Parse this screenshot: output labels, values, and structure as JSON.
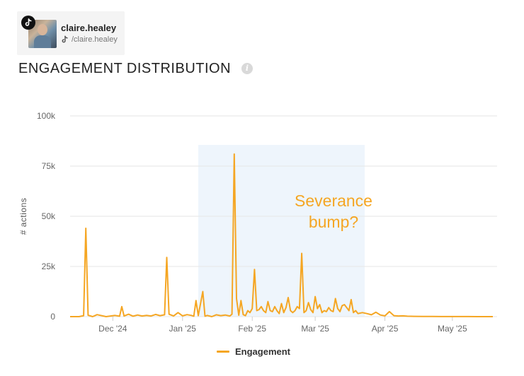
{
  "profile": {
    "username": "claire.healey",
    "handle": "/claire.healey",
    "platform_icon": "tiktok-icon",
    "avatar": "profile-photo"
  },
  "header": {
    "title": "ENGAGEMENT DISTRIBUTION",
    "info_icon": "info-icon"
  },
  "chart_data": {
    "type": "line",
    "title": "ENGAGEMENT DISTRIBUTION",
    "xlabel": "",
    "ylabel": "# actions",
    "ylim": [
      0,
      100000
    ],
    "yticks": [
      {
        "value": 0,
        "label": "0"
      },
      {
        "value": 25000,
        "label": "25k"
      },
      {
        "value": 50000,
        "label": "50k"
      },
      {
        "value": 75000,
        "label": "75k"
      },
      {
        "value": 100000,
        "label": "100k"
      }
    ],
    "xlim": [
      "2024-11-12",
      "2025-05-19"
    ],
    "xticks": [
      {
        "date": "2024-12-01",
        "label": "Dec '24"
      },
      {
        "date": "2025-01-01",
        "label": "Jan '25"
      },
      {
        "date": "2025-02-01",
        "label": "Feb '25"
      },
      {
        "date": "2025-03-01",
        "label": "Mar '25"
      },
      {
        "date": "2025-04-01",
        "label": "Apr '25"
      },
      {
        "date": "2025-05-01",
        "label": "May '25"
      }
    ],
    "grid": true,
    "legend": "bottom-center",
    "color": "#f5a623",
    "highlight": {
      "x_start": "2025-01-08",
      "x_end": "2025-03-23",
      "color": "#eef5fc"
    },
    "annotation": {
      "text": [
        "Severance",
        "bump?"
      ],
      "color": "#f5a623"
    },
    "series": [
      {
        "name": "Engagement",
        "x": [
          "2024-11-12",
          "2024-11-16",
          "2024-11-18",
          "2024-11-19",
          "2024-11-20",
          "2024-11-22",
          "2024-11-24",
          "2024-11-28",
          "2024-12-02",
          "2024-12-04",
          "2024-12-05",
          "2024-12-06",
          "2024-12-08",
          "2024-12-10",
          "2024-12-12",
          "2024-12-14",
          "2024-12-16",
          "2024-12-18",
          "2024-12-20",
          "2024-12-22",
          "2024-12-24",
          "2024-12-25",
          "2024-12-26",
          "2024-12-28",
          "2024-12-30",
          "2025-01-01",
          "2025-01-03",
          "2025-01-05",
          "2025-01-06",
          "2025-01-07",
          "2025-01-08",
          "2025-01-10",
          "2025-01-11",
          "2025-01-12",
          "2025-01-14",
          "2025-01-16",
          "2025-01-18",
          "2025-01-20",
          "2025-01-22",
          "2025-01-23",
          "2025-01-24",
          "2025-01-25",
          "2025-01-26",
          "2025-01-27",
          "2025-01-28",
          "2025-01-29",
          "2025-01-30",
          "2025-01-31",
          "2025-02-01",
          "2025-02-02",
          "2025-02-03",
          "2025-02-04",
          "2025-02-05",
          "2025-02-06",
          "2025-02-07",
          "2025-02-08",
          "2025-02-09",
          "2025-02-10",
          "2025-02-11",
          "2025-02-12",
          "2025-02-13",
          "2025-02-14",
          "2025-02-15",
          "2025-02-16",
          "2025-02-17",
          "2025-02-18",
          "2025-02-19",
          "2025-02-20",
          "2025-02-21",
          "2025-02-22",
          "2025-02-23",
          "2025-02-24",
          "2025-02-25",
          "2025-02-26",
          "2025-02-27",
          "2025-02-28",
          "2025-03-01",
          "2025-03-02",
          "2025-03-03",
          "2025-03-04",
          "2025-03-05",
          "2025-03-06",
          "2025-03-07",
          "2025-03-08",
          "2025-03-09",
          "2025-03-10",
          "2025-03-11",
          "2025-03-12",
          "2025-03-13",
          "2025-03-14",
          "2025-03-15",
          "2025-03-16",
          "2025-03-17",
          "2025-03-18",
          "2025-03-19",
          "2025-03-20",
          "2025-03-22",
          "2025-03-24",
          "2025-03-26",
          "2025-03-28",
          "2025-03-30",
          "2025-04-01",
          "2025-04-03",
          "2025-04-05",
          "2025-04-07",
          "2025-04-09",
          "2025-04-11",
          "2025-04-14",
          "2025-04-18",
          "2025-04-22",
          "2025-04-26",
          "2025-04-30",
          "2025-05-04",
          "2025-05-08",
          "2025-05-12",
          "2025-05-16",
          "2025-05-19"
        ],
        "values": [
          0,
          0,
          500,
          44000,
          700,
          0,
          1000,
          0,
          600,
          200,
          5000,
          300,
          1200,
          200,
          800,
          300,
          600,
          300,
          1100,
          500,
          900,
          29500,
          1200,
          300,
          2000,
          400,
          1000,
          600,
          200,
          8000,
          500,
          12500,
          200,
          600,
          0,
          900,
          500,
          800,
          300,
          1200,
          81000,
          9000,
          700,
          8000,
          1000,
          500,
          3000,
          2000,
          4000,
          23500,
          3000,
          3500,
          5000,
          3000,
          2000,
          7500,
          3000,
          2500,
          5000,
          3000,
          1500,
          6500,
          2000,
          4500,
          9500,
          3000,
          2000,
          3000,
          5000,
          4000,
          31500,
          2000,
          3000,
          7000,
          3500,
          2000,
          10000,
          4000,
          6000,
          2000,
          3000,
          2500,
          4500,
          3000,
          2500,
          9000,
          4000,
          2500,
          5500,
          6000,
          4500,
          3000,
          8500,
          2000,
          3000,
          1500,
          2000,
          1500,
          900,
          2200,
          800,
          400,
          2500,
          500,
          300,
          400,
          200,
          150,
          100,
          80,
          50,
          40,
          30,
          20,
          10,
          0,
          0
        ]
      }
    ]
  },
  "legend": {
    "label": "Engagement"
  }
}
